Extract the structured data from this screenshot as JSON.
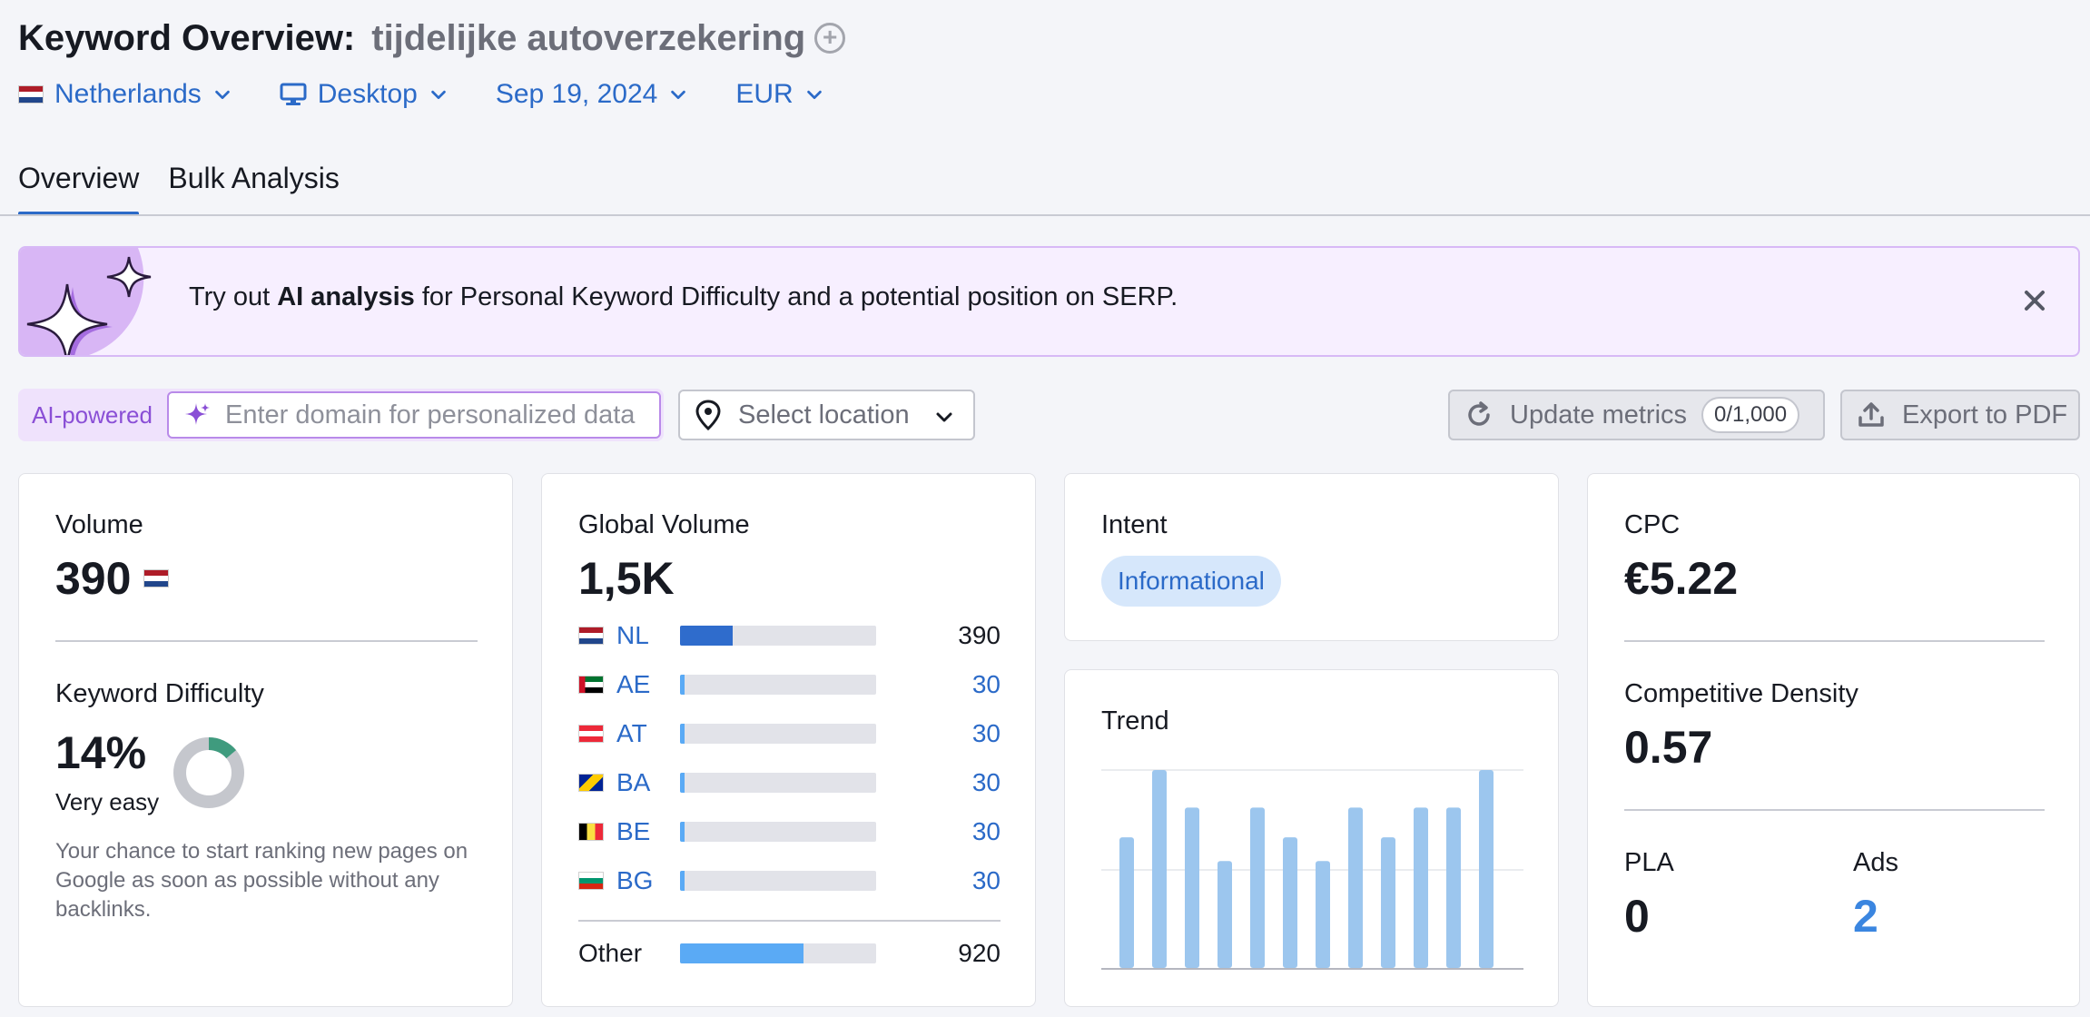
{
  "header": {
    "title": "Keyword Overview:",
    "keyword": "tijdelijke autoverzekering",
    "add_symbol": "+"
  },
  "filters": {
    "country": "Netherlands",
    "device": "Desktop",
    "date": "Sep 19, 2024",
    "currency": "EUR"
  },
  "tabs": [
    {
      "label": "Overview",
      "active": true
    },
    {
      "label": "Bulk Analysis",
      "active": false
    }
  ],
  "banner": {
    "prefix": "Try out ",
    "highlight": "AI analysis",
    "suffix": " for Personal Keyword Difficulty and a potential position on SERP."
  },
  "controls": {
    "ai_label": "AI-powered",
    "domain_placeholder": "Enter domain for personalized data",
    "location_placeholder": "Select location",
    "update_label": "Update metrics",
    "update_count": "0/1,000",
    "export_label": "Export to PDF"
  },
  "volume": {
    "label": "Volume",
    "value": "390"
  },
  "keyword_difficulty": {
    "label": "Keyword Difficulty",
    "value": "14%",
    "percent": 14,
    "level": "Very easy",
    "description": "Your chance to start ranking new pages on Google as soon as possible without any backlinks."
  },
  "global_volume": {
    "label": "Global Volume",
    "value": "1,5K",
    "rows": [
      {
        "code": "NL",
        "value": "390",
        "fraction": 0.27
      },
      {
        "code": "AE",
        "value": "30",
        "fraction": 0.025
      },
      {
        "code": "AT",
        "value": "30",
        "fraction": 0.025
      },
      {
        "code": "BA",
        "value": "30",
        "fraction": 0.025
      },
      {
        "code": "BE",
        "value": "30",
        "fraction": 0.025
      },
      {
        "code": "BG",
        "value": "30",
        "fraction": 0.025
      }
    ],
    "other": {
      "label": "Other",
      "value": "920",
      "fraction": 0.63
    }
  },
  "intent": {
    "label": "Intent",
    "value": "Informational"
  },
  "trend": {
    "label": "Trend",
    "values": [
      0.66,
      1.0,
      0.81,
      0.54,
      0.81,
      0.66,
      0.54,
      0.81,
      0.66,
      0.81,
      0.81,
      1.0
    ]
  },
  "cpc": {
    "label": "CPC",
    "value": "€5.22"
  },
  "competitive_density": {
    "label": "Competitive Density",
    "value": "0.57"
  },
  "pla": {
    "label": "PLA",
    "value": "0"
  },
  "ads": {
    "label": "Ads",
    "value": "2"
  },
  "colors": {
    "accent": "#2b6ac8",
    "bar_primary": "#2f6ccc",
    "bar_other": "#5aaaf5",
    "trend_bar": "#9cc6ee",
    "kd_fill": "#3f9b7e",
    "kd_track": "#c5c7cd",
    "ai_purple": "#8a4fd6"
  }
}
